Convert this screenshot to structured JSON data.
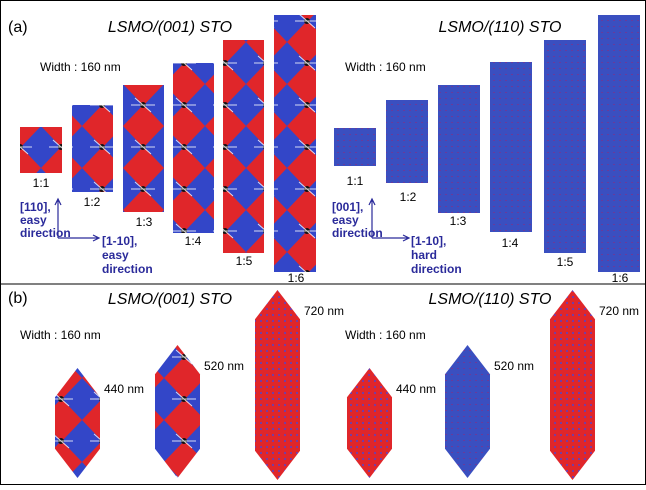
{
  "panel_a": {
    "label": "(a)",
    "groups": [
      {
        "title": "LSMO/(001) STO",
        "width_label": "Width : 160 nm",
        "ratios": [
          "1:1",
          "1:2",
          "1:3",
          "1:4",
          "1:5",
          "1:6"
        ],
        "axis_y": [
          "[110],",
          "easy",
          "direction"
        ],
        "axis_x": [
          "[1-10],",
          "easy",
          "direction"
        ]
      },
      {
        "title": "LSMO/(110) STO",
        "width_label": "Width : 160 nm",
        "ratios": [
          "1:1",
          "1:2",
          "1:3",
          "1:4",
          "1:5",
          "1:6"
        ],
        "axis_y": [
          "[001],",
          "easy",
          "direction"
        ],
        "axis_x": [
          "[1-10],",
          "hard",
          "direction"
        ]
      }
    ]
  },
  "panel_b": {
    "label": "(b)",
    "groups": [
      {
        "title": "LSMO/(001) STO",
        "width_label": "Width : 160 nm",
        "lengths": [
          "440 nm",
          "520 nm",
          "720 nm"
        ]
      },
      {
        "title": "LSMO/(110) STO",
        "width_label": "Width : 160 nm",
        "lengths": [
          "440 nm",
          "520 nm",
          "720 nm"
        ]
      }
    ]
  }
}
